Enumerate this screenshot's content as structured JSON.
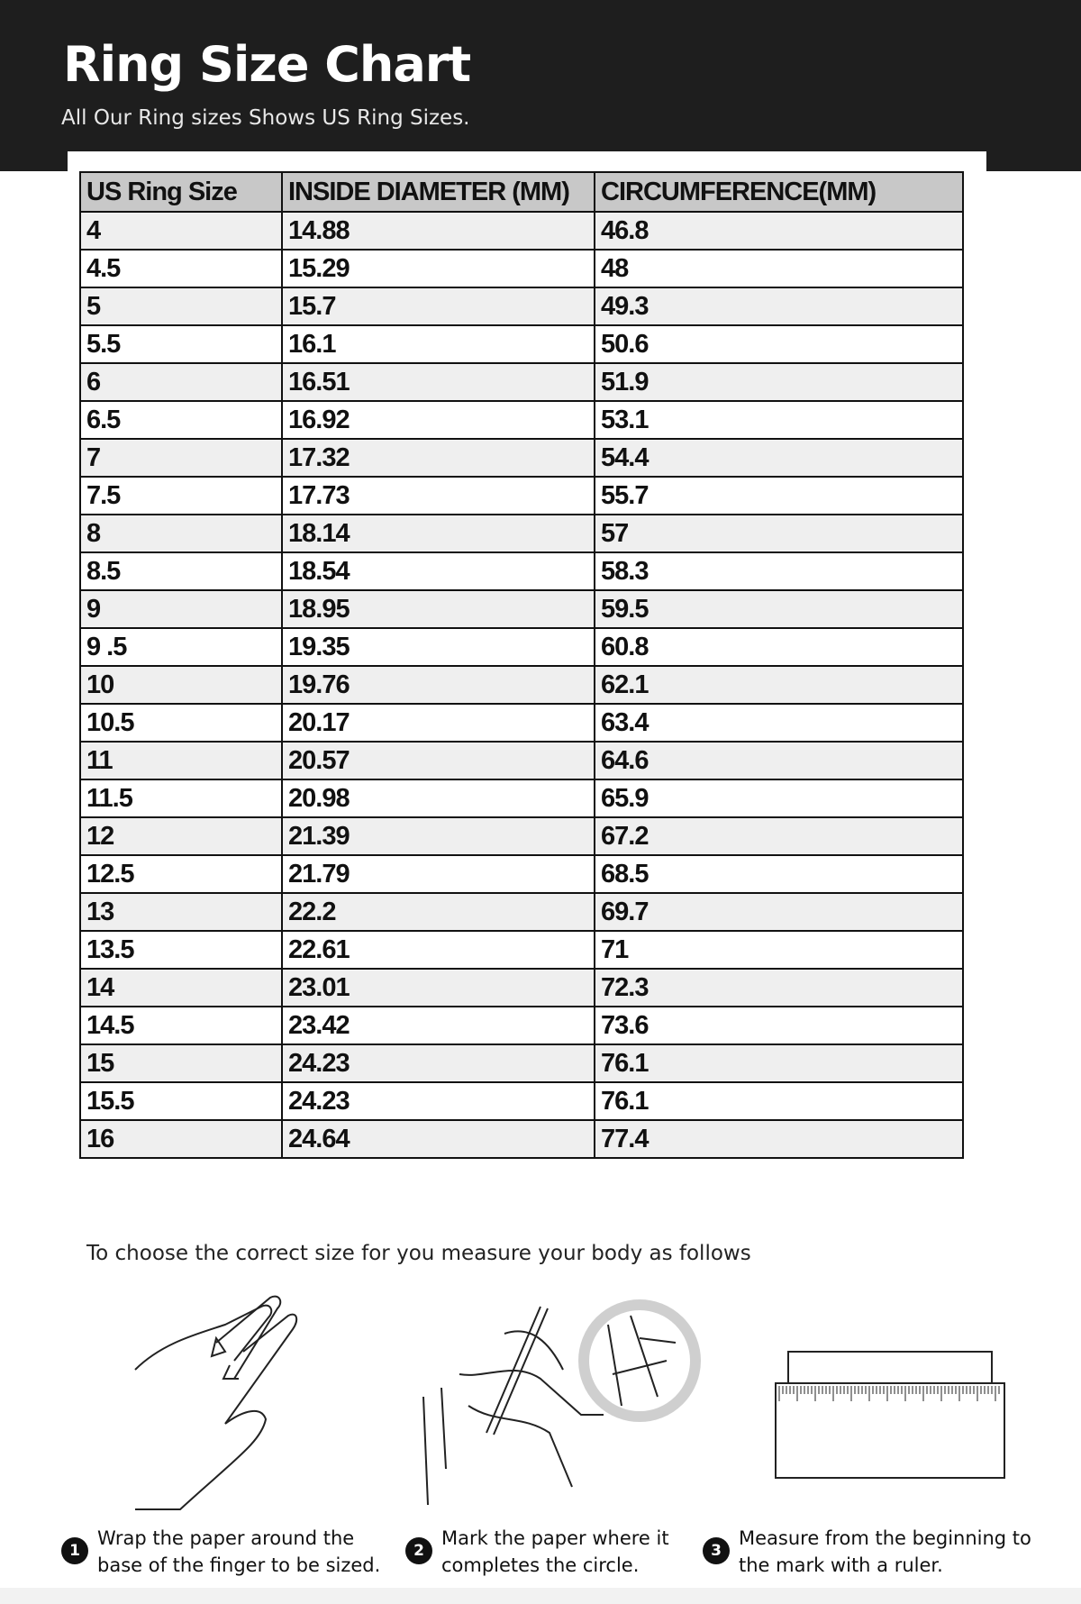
{
  "header": {
    "title": "Ring Size Chart",
    "subtitle": "All Our Ring sizes Shows US Ring Sizes."
  },
  "table": {
    "columns": [
      "US Ring Size",
      "INSIDE DIAMETER (MM)",
      "CIRCUMFERENCE(MM)"
    ],
    "rows": [
      [
        "4",
        "14.88",
        "46.8"
      ],
      [
        "4.5",
        "15.29",
        "48"
      ],
      [
        "5",
        "15.7",
        "49.3"
      ],
      [
        "5.5",
        "16.1",
        "50.6"
      ],
      [
        "6",
        "16.51",
        "51.9"
      ],
      [
        "6.5",
        "16.92",
        "53.1"
      ],
      [
        "7",
        "17.32",
        "54.4"
      ],
      [
        "7.5",
        "17.73",
        "55.7"
      ],
      [
        "8",
        "18.14",
        "57"
      ],
      [
        "8.5",
        "18.54",
        "58.3"
      ],
      [
        "9",
        "18.95",
        "59.5"
      ],
      [
        "9 .5",
        "19.35",
        "60.8"
      ],
      [
        "10",
        "19.76",
        "62.1"
      ],
      [
        "10.5",
        "20.17",
        "63.4"
      ],
      [
        "11",
        "20.57",
        "64.6"
      ],
      [
        "11.5",
        "20.98",
        "65.9"
      ],
      [
        "12",
        "21.39",
        "67.2"
      ],
      [
        "12.5",
        "21.79",
        "68.5"
      ],
      [
        "13",
        "22.2",
        "69.7"
      ],
      [
        "13.5",
        "22.61",
        "71"
      ],
      [
        "14",
        "23.01",
        "72.3"
      ],
      [
        "14.5",
        "23.42",
        "73.6"
      ],
      [
        "15",
        "24.23",
        "76.1"
      ],
      [
        "15.5",
        "24.23",
        "76.1"
      ],
      [
        "16",
        "24.64",
        "77.4"
      ]
    ]
  },
  "instructions": {
    "intro": "To choose the correct size for you measure your body as follows",
    "steps": [
      {
        "num": "1",
        "line1": "Wrap the paper around the",
        "line2": "base of the finger to be sized."
      },
      {
        "num": "2",
        "line1": "Mark the paper where it",
        "line2": "completes the circle."
      },
      {
        "num": "3",
        "line1": "Measure from the beginning to",
        "line2": "the mark with a ruler."
      }
    ]
  },
  "colors": {
    "header_bg": "#1e1e1e",
    "table_header_bg": "#c8c8c8",
    "alt_row_bg": "#efefef"
  }
}
